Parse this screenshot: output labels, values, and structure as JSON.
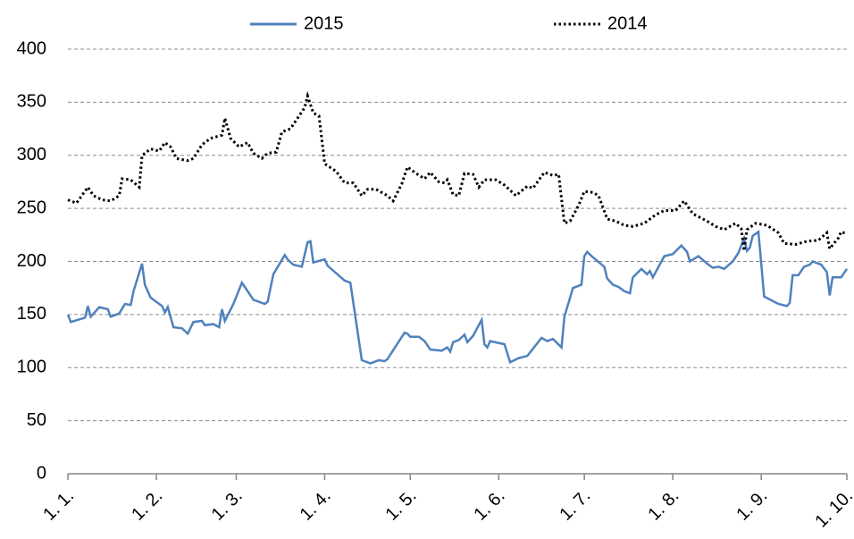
{
  "chart_data": {
    "type": "line",
    "xlim": [
      0,
      273
    ],
    "xticks": [
      {
        "value": 0,
        "label": "1. 1."
      },
      {
        "value": 31,
        "label": "1. 2."
      },
      {
        "value": 59,
        "label": "1. 3."
      },
      {
        "value": 90,
        "label": "1. 4."
      },
      {
        "value": 120,
        "label": "1. 5."
      },
      {
        "value": 151,
        "label": "1. 6."
      },
      {
        "value": 181,
        "label": "1. 7."
      },
      {
        "value": 212,
        "label": "1. 8."
      },
      {
        "value": 243,
        "label": "1. 9."
      },
      {
        "value": 273,
        "label": "1. 10."
      }
    ],
    "ylim": [
      0,
      400
    ],
    "yticks": [
      0,
      50,
      100,
      150,
      200,
      250,
      300,
      350,
      400
    ],
    "grid": true,
    "legend": "top",
    "series": [
      {
        "name": "2015",
        "color": "#4f81bd",
        "style": "solid",
        "x": [
          0,
          1,
          6,
          7,
          8,
          11,
          14,
          15,
          18,
          20,
          22,
          23,
          26,
          27,
          29,
          33,
          34,
          35,
          37,
          40,
          42,
          44,
          47,
          48,
          51,
          53,
          54,
          55,
          58,
          61,
          62,
          65,
          69,
          70,
          72,
          76,
          77,
          79,
          82,
          84,
          85,
          86,
          90,
          91,
          97,
          99,
          103,
          106,
          109,
          111,
          112,
          118,
          119,
          120,
          123,
          125,
          127,
          131,
          133,
          134,
          135,
          137,
          139,
          140,
          142,
          145,
          146,
          147,
          148,
          153,
          155,
          158,
          161,
          166,
          168,
          170,
          173,
          174,
          177,
          180,
          181,
          182,
          184,
          188,
          189,
          191,
          193,
          195,
          197,
          198,
          201,
          203,
          204,
          205,
          209,
          212,
          215,
          217,
          218,
          221,
          224,
          226,
          228,
          230,
          233,
          235,
          237,
          238,
          239,
          240,
          242,
          244,
          249,
          252,
          253,
          254,
          256,
          258,
          260,
          261,
          264,
          266,
          267,
          268,
          271,
          273
        ],
        "values": [
          150,
          143,
          147,
          158,
          148,
          157,
          155,
          148,
          151,
          160,
          159,
          172,
          198,
          178,
          166,
          158,
          152,
          157,
          138,
          137,
          132,
          143,
          144,
          140,
          141,
          138,
          155,
          144,
          160,
          180,
          176,
          164,
          160,
          162,
          188,
          206,
          202,
          197,
          195,
          218,
          219,
          199,
          202,
          196,
          182,
          180,
          107,
          104,
          107,
          106,
          108,
          133,
          132,
          129,
          129,
          125,
          117,
          116,
          119,
          115,
          124,
          126,
          131,
          124,
          130,
          145,
          122,
          119,
          125,
          122,
          105,
          109,
          111,
          128,
          125,
          127,
          119,
          148,
          175,
          178,
          205,
          209,
          204,
          195,
          184,
          178,
          176,
          172,
          170,
          185,
          193,
          188,
          191,
          185,
          205,
          207,
          215,
          209,
          200,
          205,
          198,
          194,
          195,
          193,
          200,
          208,
          222,
          210,
          213,
          224,
          228,
          167,
          160,
          158,
          161,
          187,
          187,
          195,
          197,
          200,
          197,
          190,
          168,
          185,
          185,
          193
        ]
      },
      {
        "name": "2014",
        "color": "#000000",
        "style": "dotted",
        "x": [
          0,
          3,
          7,
          9,
          12,
          15,
          18,
          19,
          22,
          25,
          26,
          29,
          32,
          34,
          36,
          38,
          42,
          44,
          47,
          50,
          54,
          55,
          57,
          60,
          63,
          65,
          68,
          70,
          73,
          75,
          78,
          80,
          83,
          84,
          86,
          88,
          90,
          94,
          97,
          100,
          103,
          105,
          108,
          112,
          114,
          117,
          119,
          122,
          125,
          127,
          130,
          132,
          133,
          135,
          137,
          139,
          142,
          144,
          146,
          150,
          153,
          157,
          161,
          163,
          167,
          170,
          172,
          174,
          176,
          179,
          181,
          184,
          186,
          189,
          192,
          195,
          198,
          202,
          206,
          209,
          213,
          216,
          219,
          224,
          227,
          230,
          234,
          236,
          237,
          238,
          241,
          245,
          249,
          251,
          255,
          259,
          263,
          266,
          267,
          270,
          271,
          273
        ],
        "values": [
          258,
          255,
          270,
          262,
          258,
          257,
          262,
          278,
          277,
          270,
          300,
          306,
          304,
          312,
          308,
          297,
          295,
          297,
          310,
          316,
          319,
          335,
          316,
          308,
          312,
          302,
          297,
          302,
          303,
          322,
          325,
          333,
          345,
          356,
          340,
          337,
          292,
          285,
          274,
          274,
          262,
          268,
          268,
          262,
          257,
          273,
          289,
          283,
          278,
          284,
          275,
          274,
          277,
          263,
          262,
          283,
          282,
          270,
          277,
          277,
          272,
          262,
          271,
          269,
          284,
          281,
          282,
          236,
          238,
          253,
          266,
          265,
          262,
          240,
          238,
          234,
          233,
          236,
          244,
          248,
          248,
          257,
          245,
          238,
          233,
          230,
          236,
          231,
          210,
          230,
          236,
          234,
          227,
          217,
          216,
          219,
          220,
          227,
          212,
          222,
          228,
          226
        ]
      }
    ]
  }
}
